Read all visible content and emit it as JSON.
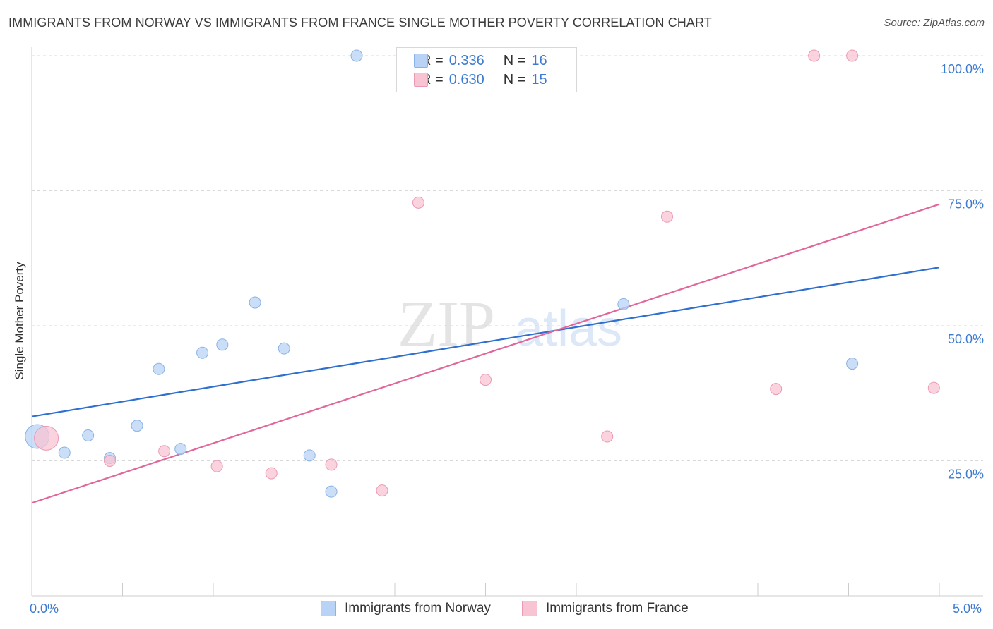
{
  "title": "IMMIGRANTS FROM NORWAY VS IMMIGRANTS FROM FRANCE SINGLE MOTHER POVERTY CORRELATION CHART",
  "source": "Source: ZipAtlas.com",
  "watermark": {
    "zip": "ZIP",
    "atlas": "atlas"
  },
  "colors": {
    "norway_fill": "#b8d3f5",
    "norway_stroke": "#8ab2e6",
    "norway_line": "#2f6fd0",
    "france_fill": "#f8c4d4",
    "france_stroke": "#eb9ab4",
    "france_line": "#e0679a",
    "accent_text": "#3d7bd1"
  },
  "legend": {
    "norway": {
      "r_label": "R =",
      "r_value": "0.336",
      "n_label": "N =",
      "n_value": "16"
    },
    "france": {
      "r_label": "R =",
      "r_value": "0.630",
      "n_label": "N =",
      "n_value": "15"
    }
  },
  "bottom_legend": {
    "norway": "Immigrants from Norway",
    "france": "Immigrants from France"
  },
  "chart_data": {
    "type": "scatter",
    "title": "IMMIGRANTS FROM NORWAY VS IMMIGRANTS FROM FRANCE SINGLE MOTHER POVERTY CORRELATION CHART",
    "xlabel": "",
    "ylabel": "Single Mother Poverty",
    "xlim": [
      0,
      5
    ],
    "ylim": [
      0,
      100
    ],
    "x_tick_labels": {
      "min": "0.0%",
      "max": "5.0%"
    },
    "y_ticks": [
      25,
      50,
      75,
      100
    ],
    "y_tick_labels": [
      "25.0%",
      "50.0%",
      "75.0%",
      "100.0%"
    ],
    "grid": true,
    "series": [
      {
        "name": "Immigrants from Norway",
        "points": [
          {
            "x": 0.03,
            "y": 29.5,
            "big": true
          },
          {
            "x": 0.18,
            "y": 26.5
          },
          {
            "x": 0.31,
            "y": 29.7
          },
          {
            "x": 0.43,
            "y": 25.5
          },
          {
            "x": 0.58,
            "y": 31.5
          },
          {
            "x": 0.7,
            "y": 42.0
          },
          {
            "x": 0.82,
            "y": 27.2
          },
          {
            "x": 0.94,
            "y": 45.0
          },
          {
            "x": 1.05,
            "y": 46.5
          },
          {
            "x": 1.23,
            "y": 54.3
          },
          {
            "x": 1.39,
            "y": 45.8
          },
          {
            "x": 1.53,
            "y": 26.0
          },
          {
            "x": 1.65,
            "y": 19.3
          },
          {
            "x": 1.79,
            "y": 100.0
          },
          {
            "x": 3.26,
            "y": 54.0
          },
          {
            "x": 4.52,
            "y": 43.0
          }
        ],
        "trend": {
          "x0": 0,
          "y0": 33.2,
          "x1": 5,
          "y1": 60.8
        }
      },
      {
        "name": "Immigrants from France",
        "points": [
          {
            "x": 0.08,
            "y": 29.2,
            "big": true
          },
          {
            "x": 0.43,
            "y": 25.0
          },
          {
            "x": 0.73,
            "y": 26.8
          },
          {
            "x": 1.02,
            "y": 24.0
          },
          {
            "x": 1.32,
            "y": 22.7
          },
          {
            "x": 1.65,
            "y": 24.3
          },
          {
            "x": 1.93,
            "y": 19.5
          },
          {
            "x": 2.13,
            "y": 72.8
          },
          {
            "x": 2.5,
            "y": 40.0
          },
          {
            "x": 3.17,
            "y": 29.5
          },
          {
            "x": 3.5,
            "y": 70.2
          },
          {
            "x": 4.1,
            "y": 38.3
          },
          {
            "x": 4.31,
            "y": 100.0
          },
          {
            "x": 4.52,
            "y": 100.0
          },
          {
            "x": 4.97,
            "y": 38.5
          }
        ],
        "trend": {
          "x0": 0,
          "y0": 17.2,
          "x1": 5,
          "y1": 72.5
        }
      }
    ]
  }
}
